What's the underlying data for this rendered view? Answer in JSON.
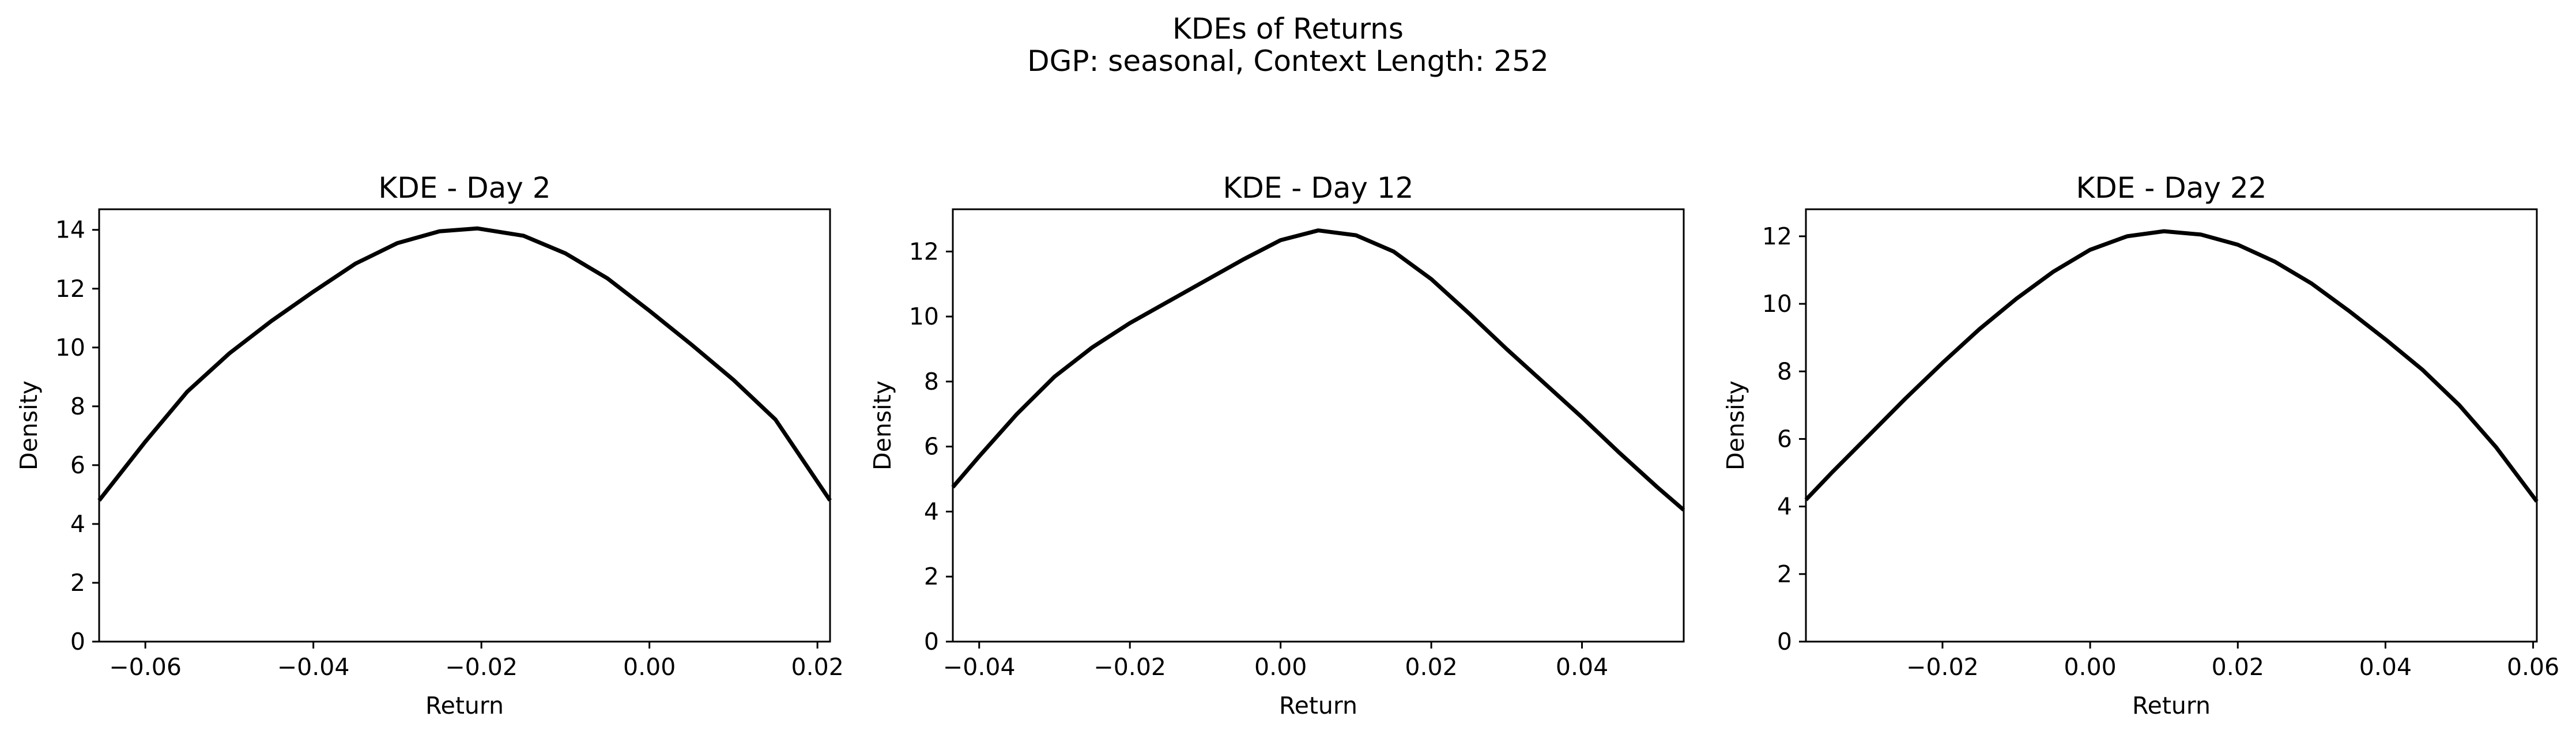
{
  "figure": {
    "title": "KDEs of Returns",
    "subtitle": "DGP: seasonal, Context Length: 252"
  },
  "chart_data": [
    {
      "type": "line",
      "title": "KDE - Day 2",
      "xlabel": "Return",
      "ylabel": "Density",
      "xlim": [
        -0.0655,
        0.0215
      ],
      "ylim": [
        0,
        14.7
      ],
      "xticks": [
        -0.06,
        -0.04,
        -0.02,
        0.0,
        0.02
      ],
      "xtick_labels": [
        "−0.06",
        "−0.04",
        "−0.02",
        "0.00",
        "0.02"
      ],
      "yticks": [
        0,
        2,
        4,
        6,
        8,
        10,
        12,
        14
      ],
      "ytick_labels": [
        "0",
        "2",
        "4",
        "6",
        "8",
        "10",
        "12",
        "14"
      ],
      "grid": false,
      "series": [
        {
          "color": "#000000",
          "x": [
            -0.0655,
            -0.06,
            -0.055,
            -0.05,
            -0.045,
            -0.04,
            -0.035,
            -0.03,
            -0.025,
            -0.0205,
            -0.015,
            -0.01,
            -0.005,
            0.0,
            0.005,
            0.01,
            0.015,
            0.0215
          ],
          "y": [
            4.8,
            6.8,
            8.5,
            9.8,
            10.9,
            11.9,
            12.85,
            13.55,
            13.95,
            14.05,
            13.8,
            13.2,
            12.35,
            11.25,
            10.1,
            8.9,
            7.55,
            4.8
          ]
        }
      ]
    },
    {
      "type": "line",
      "title": "KDE - Day 12",
      "xlabel": "Return",
      "ylabel": "Density",
      "xlim": [
        -0.0435,
        0.0535
      ],
      "ylim": [
        0,
        13.3
      ],
      "xticks": [
        -0.04,
        -0.02,
        0.0,
        0.02,
        0.04
      ],
      "xtick_labels": [
        "−0.04",
        "−0.02",
        "0.00",
        "0.02",
        "0.04"
      ],
      "yticks": [
        0,
        2,
        4,
        6,
        8,
        10,
        12
      ],
      "ytick_labels": [
        "0",
        "2",
        "4",
        "6",
        "8",
        "10",
        "12"
      ],
      "grid": false,
      "series": [
        {
          "color": "#000000",
          "x": [
            -0.0435,
            -0.04,
            -0.035,
            -0.03,
            -0.025,
            -0.02,
            -0.015,
            -0.01,
            -0.005,
            0.0,
            0.005,
            0.01,
            0.015,
            0.02,
            0.025,
            0.03,
            0.035,
            0.04,
            0.045,
            0.05,
            0.0535
          ],
          "y": [
            4.75,
            5.7,
            7.0,
            8.15,
            9.05,
            9.8,
            10.45,
            11.1,
            11.75,
            12.35,
            12.65,
            12.5,
            12.0,
            11.15,
            10.1,
            9.0,
            7.95,
            6.9,
            5.8,
            4.75,
            4.05
          ]
        }
      ]
    },
    {
      "type": "line",
      "title": "KDE - Day 22",
      "xlabel": "Return",
      "ylabel": "Density",
      "xlim": [
        -0.0385,
        0.0605
      ],
      "ylim": [
        0,
        12.8
      ],
      "xticks": [
        -0.02,
        0.0,
        0.02,
        0.04,
        0.06
      ],
      "xtick_labels": [
        "−0.02",
        "0.00",
        "0.02",
        "0.04",
        "0.06"
      ],
      "yticks": [
        0,
        2,
        4,
        6,
        8,
        10,
        12
      ],
      "ytick_labels": [
        "0",
        "2",
        "4",
        "6",
        "8",
        "10",
        "12"
      ],
      "grid": false,
      "series": [
        {
          "color": "#000000",
          "x": [
            -0.0385,
            -0.035,
            -0.03,
            -0.025,
            -0.02,
            -0.015,
            -0.01,
            -0.005,
            0.0,
            0.005,
            0.01,
            0.015,
            0.02,
            0.025,
            0.03,
            0.035,
            0.04,
            0.045,
            0.05,
            0.055,
            0.0605
          ],
          "y": [
            4.2,
            5.0,
            6.1,
            7.2,
            8.25,
            9.25,
            10.15,
            10.95,
            11.6,
            12.0,
            12.15,
            12.05,
            11.75,
            11.25,
            10.6,
            9.8,
            8.95,
            8.05,
            7.0,
            5.75,
            4.15
          ]
        }
      ]
    }
  ]
}
